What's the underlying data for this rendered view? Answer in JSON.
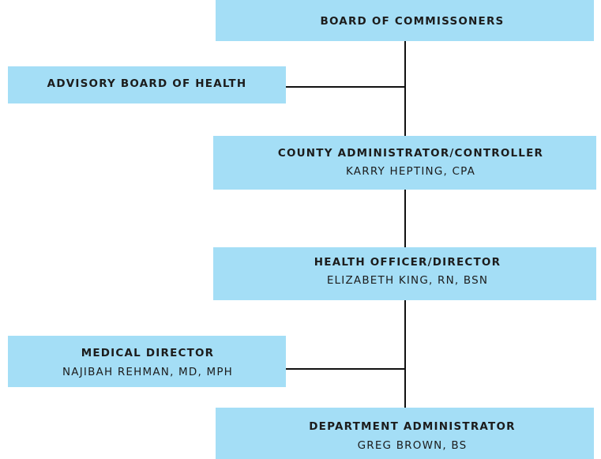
{
  "nodes": [
    {
      "title": "BOARD OF COMMISSONERS"
    },
    {
      "title": "ADVISORY BOARD OF HEALTH"
    },
    {
      "title": "COUNTY ADMINISTRATOR/CONTROLLER",
      "name": "KARRY HEPTING, CPA"
    },
    {
      "title": "HEALTH OFFICER/DIRECTOR",
      "name": "ELIZABETH KING, RN, BSN"
    },
    {
      "title": "MEDICAL DIRECTOR",
      "name": "NAJIBAH REHMAN, MD, MPH"
    },
    {
      "title": "DEPARTMENT ADMINISTRATOR",
      "name": "GREG BROWN, BS"
    }
  ]
}
